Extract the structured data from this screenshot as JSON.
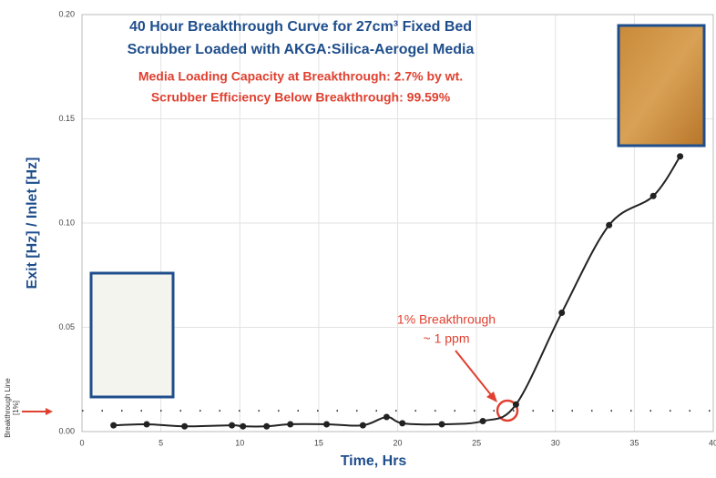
{
  "chart_data": {
    "type": "line",
    "title": [
      "40 Hour Breakthrough Curve for 27cm³ Fixed Bed",
      "Scrubber Loaded with AKGA:Silica-Aerogel Media"
    ],
    "subtitle": [
      "Media Loading Capacity at Breakthrough: 2.7% by wt.",
      "Scrubber Efficiency Below Breakthrough: 99.59%"
    ],
    "x_label": "Time, Hrs",
    "y_label": "Exit [Hz] / Inlet [Hz]",
    "annotation": [
      "1% Breakthrough",
      "~ 1 ppm"
    ],
    "breakthrough_label": [
      "Breakthrough Line",
      "[1%]"
    ],
    "breakthrough_value": 0.01,
    "x": [
      2,
      4.1,
      6.5,
      9.5,
      10.2,
      11.7,
      13.2,
      15.5,
      17.8,
      19.3,
      20.3,
      22.8,
      25.4,
      27.5,
      30.4,
      33.4,
      36.2,
      37.9
    ],
    "series": [
      {
        "color": "#222222",
        "values": [
          0.003,
          0.0035,
          0.0025,
          0.003,
          0.0025,
          0.0025,
          0.0035,
          0.0035,
          0.003,
          0.007,
          0.004,
          0.0035,
          0.005,
          0.013,
          0.057,
          0.099,
          0.113,
          0.132
        ]
      }
    ],
    "xlim": [
      0,
      40
    ],
    "xticks": [
      0,
      5,
      10,
      15,
      20,
      25,
      30,
      35,
      40
    ],
    "ylim": [
      0,
      0.2
    ],
    "yticks": [
      {
        "value": 0,
        "label": "0.00"
      },
      {
        "value": 0.05,
        "label": "0.05"
      },
      {
        "value": 0.1,
        "label": "0.10"
      },
      {
        "value": 0.15,
        "label": "0.15"
      },
      {
        "value": 0.2,
        "label": "0.20"
      }
    ],
    "grid": true
  }
}
